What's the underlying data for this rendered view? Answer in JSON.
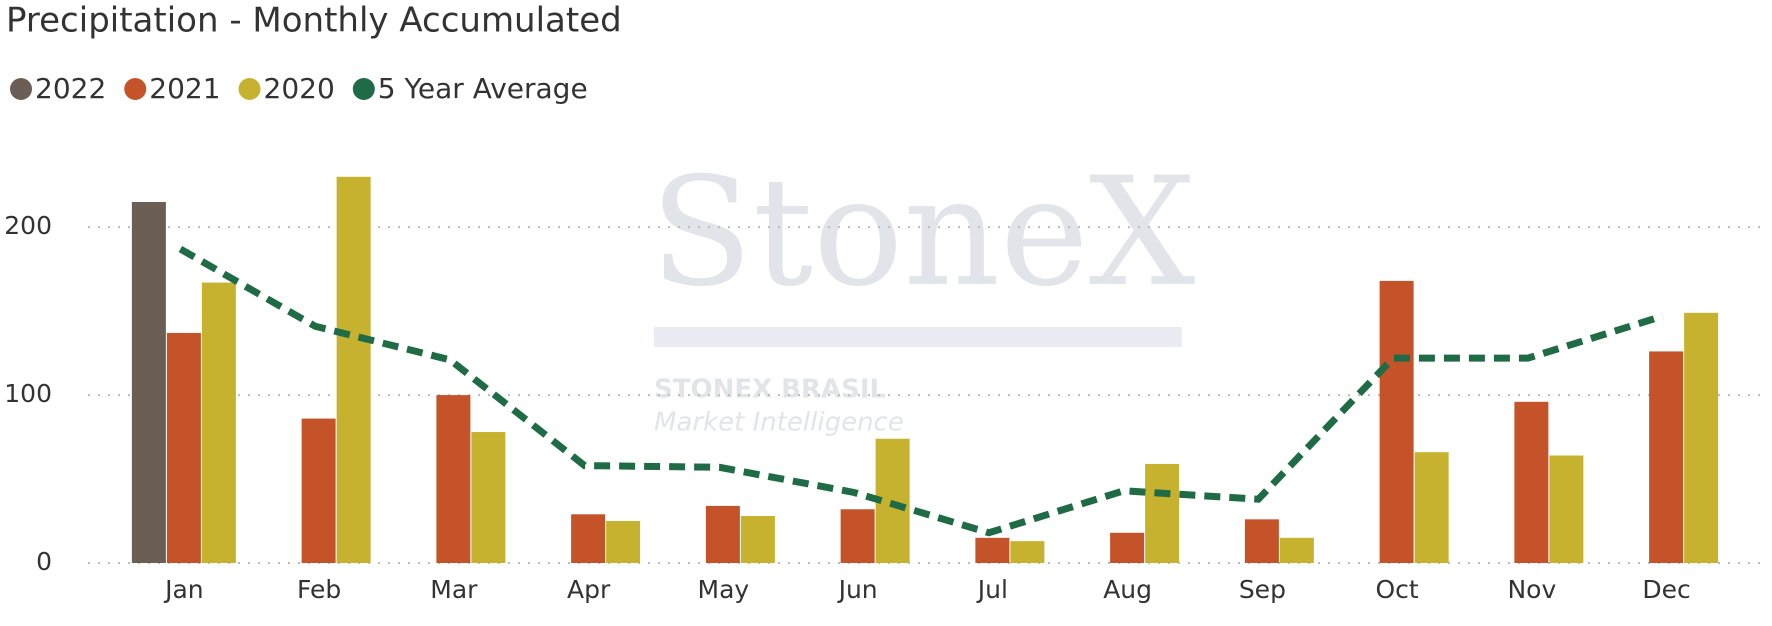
{
  "chart_data": {
    "type": "bar",
    "title": "Precipitation - Monthly Accumulated",
    "categories": [
      "Jan",
      "Feb",
      "Mar",
      "Apr",
      "May",
      "Jun",
      "Jul",
      "Aug",
      "Sep",
      "Oct",
      "Nov",
      "Dec"
    ],
    "series": [
      {
        "name": "2022",
        "color": "#6b5e55",
        "type": "bar",
        "values": [
          215,
          null,
          null,
          null,
          null,
          null,
          null,
          null,
          null,
          null,
          null,
          null
        ]
      },
      {
        "name": "2021",
        "color": "#c4532a",
        "type": "bar",
        "values": [
          137,
          86,
          100,
          29,
          34,
          32,
          15,
          18,
          26,
          168,
          96,
          126
        ]
      },
      {
        "name": "2020",
        "color": "#c7b22f",
        "type": "bar",
        "values": [
          167,
          230,
          78,
          25,
          28,
          74,
          13,
          59,
          15,
          66,
          64,
          149
        ]
      },
      {
        "name": "5 Year Average",
        "color": "#1f6b45",
        "type": "line",
        "values": [
          187,
          141,
          121,
          58,
          57,
          42,
          18,
          43,
          38,
          122,
          122,
          147
        ]
      }
    ],
    "ylim": [
      0,
      240
    ],
    "yticks": [
      0,
      100,
      200
    ],
    "grid": true,
    "watermark": {
      "brand": "StoneX",
      "line1": "STONEX BRASIL",
      "line2": "Market Intelligence"
    }
  }
}
